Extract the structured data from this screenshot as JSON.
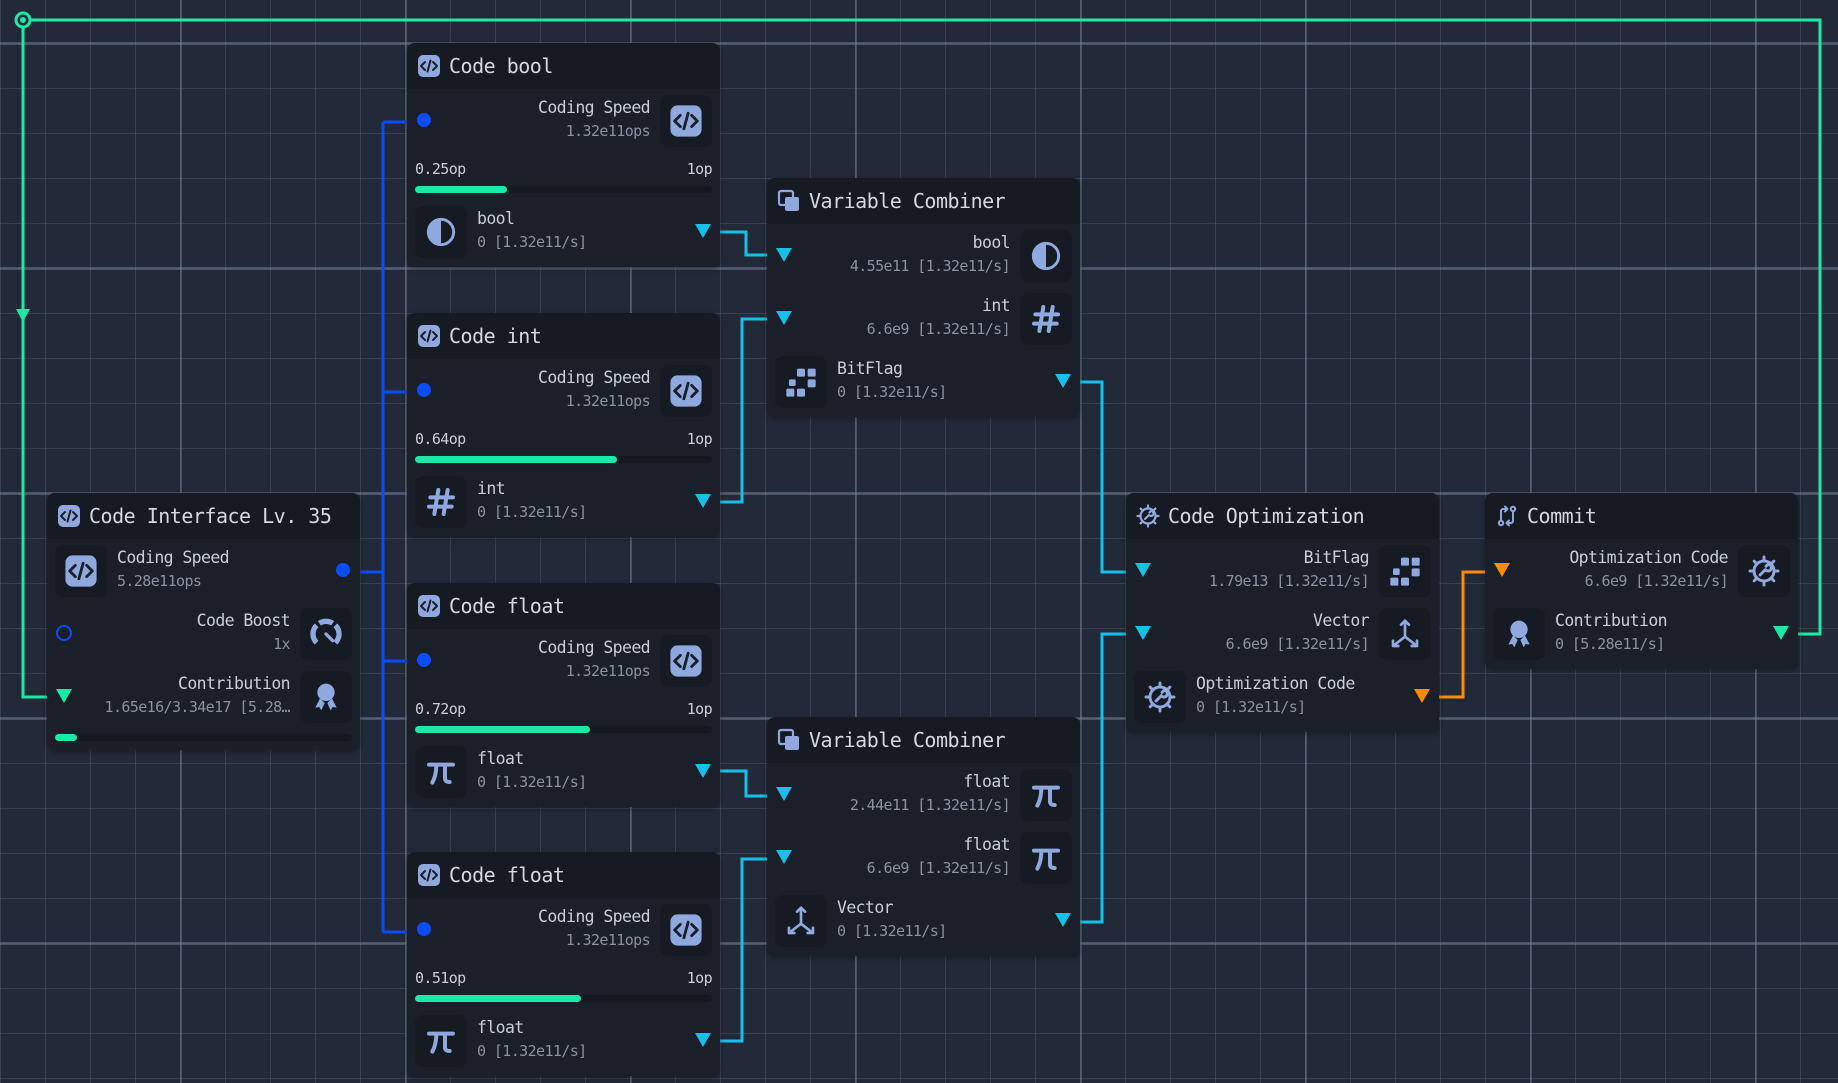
{
  "colors": {
    "background": "#222a3a",
    "node": "#1a1f29",
    "icon": "#8fa8dd",
    "wire_speed": "#0b4cf5",
    "wire_variable": "#17c0e8",
    "wire_contribution": "#1de9a6",
    "wire_optimization": "#ff8c00",
    "progress_fill": "#1de9a6"
  },
  "nodes": [
    {
      "id": "code-interface",
      "title": "Code Interface Lv. 35",
      "title_icon": "code-icon",
      "sections": [
        {
          "kind": "row",
          "dir": "out",
          "label": "Coding Speed",
          "value": "5.28e11ops",
          "icon": "code-icon",
          "port": "dot"
        },
        {
          "kind": "row",
          "dir": "in",
          "label": "Code Boost",
          "value": "1x",
          "icon": "speedometer-icon",
          "port": "ring"
        },
        {
          "kind": "row",
          "dir": "in",
          "label": "Contribution",
          "value": "1.65e16/3.34e17 [5.28…",
          "icon": "award-icon",
          "port": "tri-green"
        },
        {
          "kind": "progress",
          "small": true,
          "fraction": 0.05
        }
      ]
    },
    {
      "id": "code-bool",
      "title": "Code bool",
      "title_icon": "code-icon",
      "sections": [
        {
          "kind": "row",
          "dir": "in",
          "label": "Coding Speed",
          "value": "1.32e11ops",
          "icon": "code-icon",
          "port": "dot"
        },
        {
          "kind": "progress",
          "min_label": "0.25op",
          "max_label": "1op",
          "fraction": 0.31
        },
        {
          "kind": "row",
          "dir": "out",
          "label": "bool",
          "value": "0 [1.32e11/s]",
          "icon": "half-circle-icon",
          "port": "tri"
        }
      ]
    },
    {
      "id": "code-int",
      "title": "Code int",
      "title_icon": "code-icon",
      "sections": [
        {
          "kind": "row",
          "dir": "in",
          "label": "Coding Speed",
          "value": "1.32e11ops",
          "icon": "code-icon",
          "port": "dot"
        },
        {
          "kind": "progress",
          "min_label": "0.64op",
          "max_label": "1op",
          "fraction": 0.68
        },
        {
          "kind": "row",
          "dir": "out",
          "label": "int",
          "value": "0 [1.32e11/s]",
          "icon": "hash-icon",
          "port": "tri"
        }
      ]
    },
    {
      "id": "code-float-1",
      "title": "Code float",
      "title_icon": "code-icon",
      "sections": [
        {
          "kind": "row",
          "dir": "in",
          "label": "Coding Speed",
          "value": "1.32e11ops",
          "icon": "code-icon",
          "port": "dot"
        },
        {
          "kind": "progress",
          "min_label": "0.72op",
          "max_label": "1op",
          "fraction": 0.59
        },
        {
          "kind": "row",
          "dir": "out",
          "label": "float",
          "value": "0 [1.32e11/s]",
          "icon": "pi-icon",
          "port": "tri"
        }
      ]
    },
    {
      "id": "code-float-2",
      "title": "Code float",
      "title_icon": "code-icon",
      "sections": [
        {
          "kind": "row",
          "dir": "in",
          "label": "Coding Speed",
          "value": "1.32e11ops",
          "icon": "code-icon",
          "port": "dot"
        },
        {
          "kind": "progress",
          "min_label": "0.51op",
          "max_label": "1op",
          "fraction": 0.56
        },
        {
          "kind": "row",
          "dir": "out",
          "label": "float",
          "value": "0 [1.32e11/s]",
          "icon": "pi-icon",
          "port": "tri"
        }
      ]
    },
    {
      "id": "var-combiner-1",
      "title": "Variable Combiner",
      "title_icon": "layers-icon",
      "sections": [
        {
          "kind": "row",
          "dir": "in",
          "label": "bool",
          "value": "4.55e11 [1.32e11/s]",
          "icon": "half-circle-icon",
          "port": "tri"
        },
        {
          "kind": "row",
          "dir": "in",
          "label": "int",
          "value": "6.6e9 [1.32e11/s]",
          "icon": "hash-icon",
          "port": "tri"
        },
        {
          "kind": "row",
          "dir": "out",
          "label": "BitFlag",
          "value": "0 [1.32e11/s]",
          "icon": "bitflag-icon",
          "port": "tri"
        }
      ]
    },
    {
      "id": "var-combiner-2",
      "title": "Variable Combiner",
      "title_icon": "layers-icon",
      "sections": [
        {
          "kind": "row",
          "dir": "in",
          "label": "float",
          "value": "2.44e11 [1.32e11/s]",
          "icon": "pi-icon",
          "port": "tri"
        },
        {
          "kind": "row",
          "dir": "in",
          "label": "float",
          "value": "6.6e9 [1.32e11/s]",
          "icon": "pi-icon",
          "port": "tri"
        },
        {
          "kind": "row",
          "dir": "out",
          "label": "Vector",
          "value": "0 [1.32e11/s]",
          "icon": "vector-icon",
          "port": "tri"
        }
      ]
    },
    {
      "id": "code-optimization",
      "title": "Code Optimization",
      "title_icon": "gear-wrench-icon",
      "sections": [
        {
          "kind": "row",
          "dir": "in",
          "label": "BitFlag",
          "value": "1.79e13 [1.32e11/s]",
          "icon": "bitflag-icon",
          "port": "tri"
        },
        {
          "kind": "row",
          "dir": "in",
          "label": "Vector",
          "value": "6.6e9 [1.32e11/s]",
          "icon": "vector-icon",
          "port": "tri"
        },
        {
          "kind": "row",
          "dir": "out",
          "label": "Optimization Code",
          "value": "0 [1.32e11/s]",
          "icon": "gear-wrench-icon",
          "port": "tri-orange"
        }
      ]
    },
    {
      "id": "commit",
      "title": "Commit",
      "title_icon": "git-compare-icon",
      "sections": [
        {
          "kind": "row",
          "dir": "in",
          "label": "Optimization Code",
          "value": "6.6e9 [1.32e11/s]",
          "icon": "gear-wrench-icon",
          "port": "tri-orange"
        },
        {
          "kind": "row",
          "dir": "out",
          "label": "Contribution",
          "value": "0 [5.28e11/s]",
          "icon": "award-icon",
          "port": "tri-green"
        }
      ]
    }
  ]
}
